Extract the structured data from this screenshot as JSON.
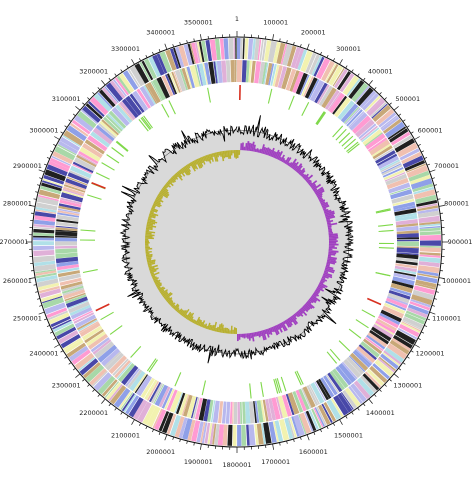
{
  "genome_map": {
    "position_labels": [
      "1",
      "100001",
      "200001",
      "300001",
      "400001",
      "500001",
      "600001",
      "700001",
      "800001",
      "900001",
      "1000001",
      "1100001",
      "1200001",
      "1300001",
      "1400001",
      "1500001",
      "1600001",
      "1700001",
      "1800001",
      "1900001",
      "2000001",
      "2100001",
      "2200001",
      "2300001",
      "2400001",
      "2500001",
      "2600001",
      "2700001",
      "2800001",
      "2900001",
      "3000001",
      "3100001",
      "3200001",
      "3300001",
      "3400001",
      "3500001"
    ],
    "colors": {
      "axis": "#111111",
      "gene_palette": [
        "#b8b8ee",
        "#e0b0d8",
        "#a8d8a8",
        "#f2f2b0",
        "#c8a878",
        "#d0d0d0",
        "#8fa0e8",
        "#f0c0b0",
        "#b0e0e8",
        "#4848a8",
        "#202020",
        "#ff9bd2"
      ],
      "rna_green": "#7fd84a",
      "rna_red": "#d83020",
      "gc_content": "#000000",
      "gc_skew_positive": "#a040c0",
      "gc_skew_negative": "#b8b030"
    },
    "tracks": [
      "position-scale",
      "genes-forward",
      "genes-reverse",
      "rna-features",
      "gc-content",
      "gc-skew"
    ]
  }
}
